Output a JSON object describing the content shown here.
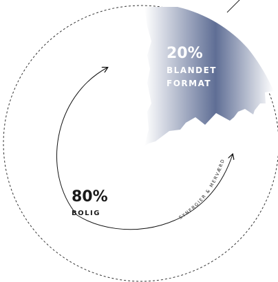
{
  "segments": [
    {
      "id": "mixed",
      "percent": "20%",
      "label_line1": "BLANDET",
      "label_line2": "FORMAT",
      "text_color": "#ffffff",
      "gradient": [
        "#ffffff",
        "#5f6e95",
        "#ffffff"
      ]
    },
    {
      "id": "housing",
      "percent": "80%",
      "label_line1": "BOLIG",
      "text_color": "#1a1a1a"
    }
  ],
  "arrow_caption": "SYNERGIER & MERVÆRDI",
  "colors": {
    "line": "#111111",
    "dashed": "#333333",
    "background": "#ffffff"
  }
}
